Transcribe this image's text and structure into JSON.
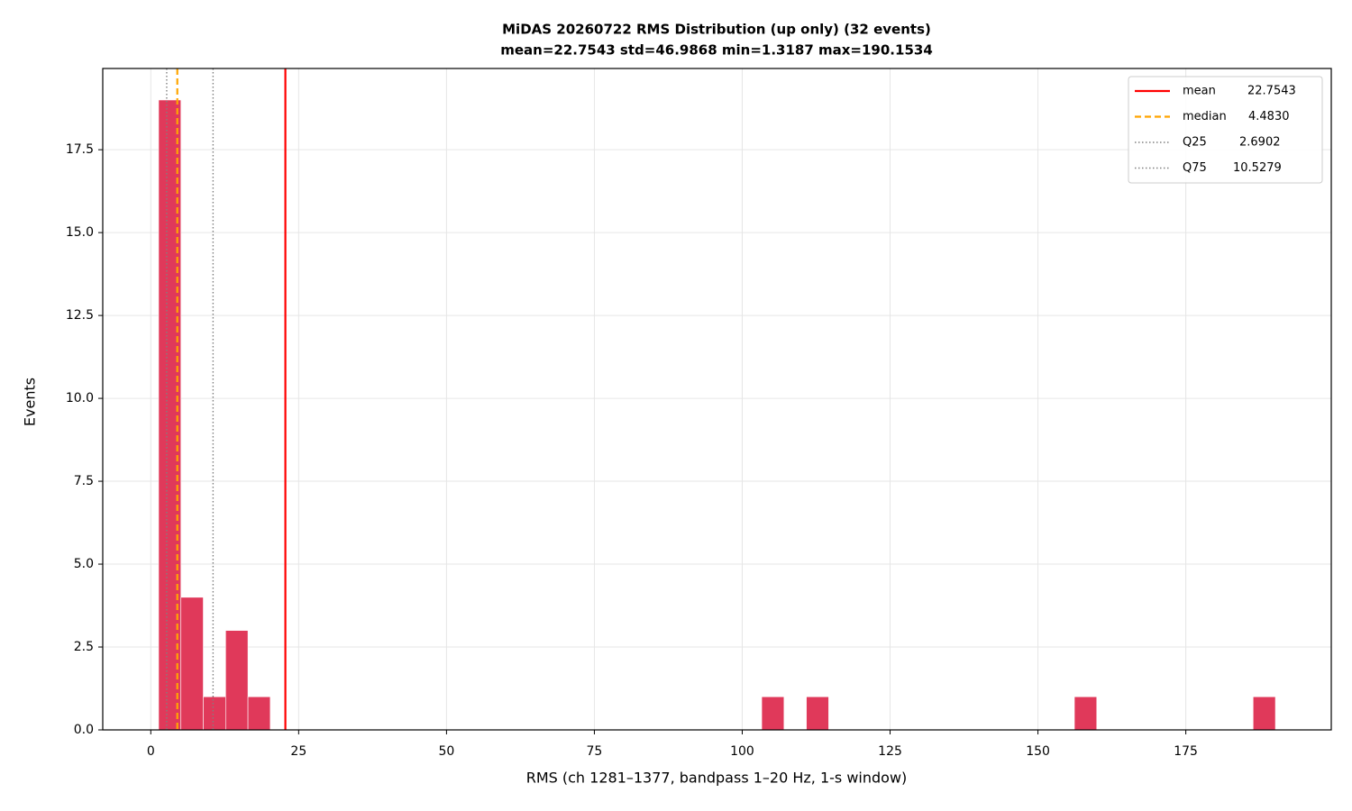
{
  "chart_data": {
    "type": "histogram",
    "title": "MiDAS 20260722  RMS Distribution  (up only)  (32 events)",
    "subtitle": "mean=22.7543  std=46.9868  min=1.3187  max=190.1534",
    "x_label": "RMS  (ch 1281–1377, bandpass 1–20 Hz, 1-s window)",
    "y_label": "Events",
    "color": "#e0395a",
    "bins": [
      1.3187,
      5.0954,
      8.8721,
      12.6488,
      16.4255,
      20.2022,
      23.9789,
      27.7556,
      31.5323,
      35.3089,
      39.0856,
      42.8623,
      46.639,
      50.4157,
      54.1924,
      57.9691,
      61.7458,
      65.5225,
      69.2992,
      73.0759,
      76.8526,
      80.6293,
      84.406,
      88.1827,
      91.9594,
      95.7361,
      99.5127,
      103.2894,
      107.0661,
      110.8428,
      114.6195,
      118.3962,
      122.1729,
      125.9496,
      129.7263,
      133.503,
      137.2797,
      141.0564,
      144.8331,
      148.6098,
      152.3865,
      156.1632,
      159.9398,
      163.7165,
      167.4932,
      171.2699,
      175.0466,
      178.8233,
      182.6,
      186.3767,
      190.1534
    ],
    "counts": [
      19,
      4,
      1,
      3,
      1,
      0,
      0,
      0,
      0,
      0,
      0,
      0,
      0,
      0,
      0,
      0,
      0,
      0,
      0,
      0,
      0,
      0,
      0,
      0,
      0,
      0,
      0,
      1,
      0,
      1,
      0,
      0,
      0,
      0,
      0,
      0,
      0,
      0,
      0,
      0,
      0,
      1,
      0,
      0,
      0,
      0,
      0,
      0,
      0,
      1
    ],
    "reference_lines": [
      {
        "name": "mean",
        "value": 22.7543,
        "label": "22.7543",
        "color": "#ff0000",
        "style": "solid"
      },
      {
        "name": "median",
        "value": 4.483,
        "label": "4.4830",
        "color": "#ffa500",
        "style": "dashed"
      },
      {
        "name": "Q25",
        "value": 2.6902,
        "label": "2.6902",
        "color": "#808080",
        "style": "dotted"
      },
      {
        "name": "Q75",
        "value": 10.5279,
        "label": "10.5279",
        "color": "#808080",
        "style": "dotted"
      }
    ],
    "xlim": [
      -8.123,
      199.595
    ],
    "ylim": [
      0,
      19.95
    ],
    "xticks": [
      0,
      25,
      50,
      75,
      100,
      125,
      150,
      175
    ],
    "yticks": [
      {
        "value": 0,
        "label": "0.0"
      },
      {
        "value": 2.5,
        "label": "2.5"
      },
      {
        "value": 5,
        "label": "5.0"
      },
      {
        "value": 7.5,
        "label": "7.5"
      },
      {
        "value": 10,
        "label": "10.0"
      },
      {
        "value": 12.5,
        "label": "12.5"
      },
      {
        "value": 15,
        "label": "15.0"
      },
      {
        "value": 17.5,
        "label": "17.5"
      }
    ],
    "grid": true,
    "legend": "upper right"
  }
}
